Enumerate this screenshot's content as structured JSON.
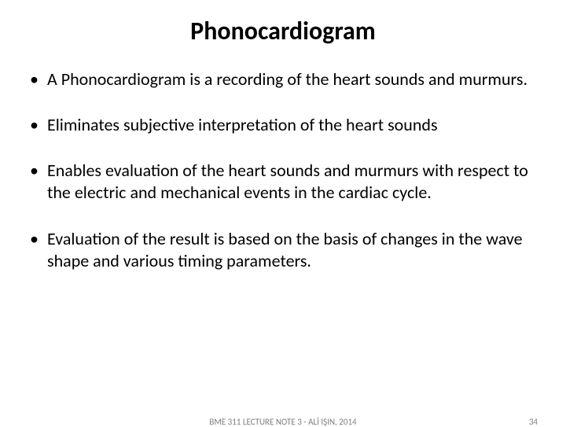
{
  "title": "Phonocardiogram",
  "bullets": [
    "A Phonocardiogram is a recording of the heart sounds and murmurs.",
    "Eliminates subjective interpretation of the heart sounds",
    "Enables evaluation of the heart sounds and murmurs with respect to the electric and mechanical events in the cardiac cycle.",
    "Evaluation of the result is based on the basis of changes in the wave shape and various timing parameters."
  ],
  "footer": {
    "center": "BME 311 LECTURE NOTE 3 - ALİ IŞIN, 2014",
    "page": "34"
  },
  "style": {
    "title_fontsize": 32,
    "body_fontsize": 22,
    "footer_fontsize": 11,
    "title_color": "#000000",
    "body_color": "#000000",
    "footer_color": "#7f7f7f",
    "background_color": "#ffffff"
  }
}
